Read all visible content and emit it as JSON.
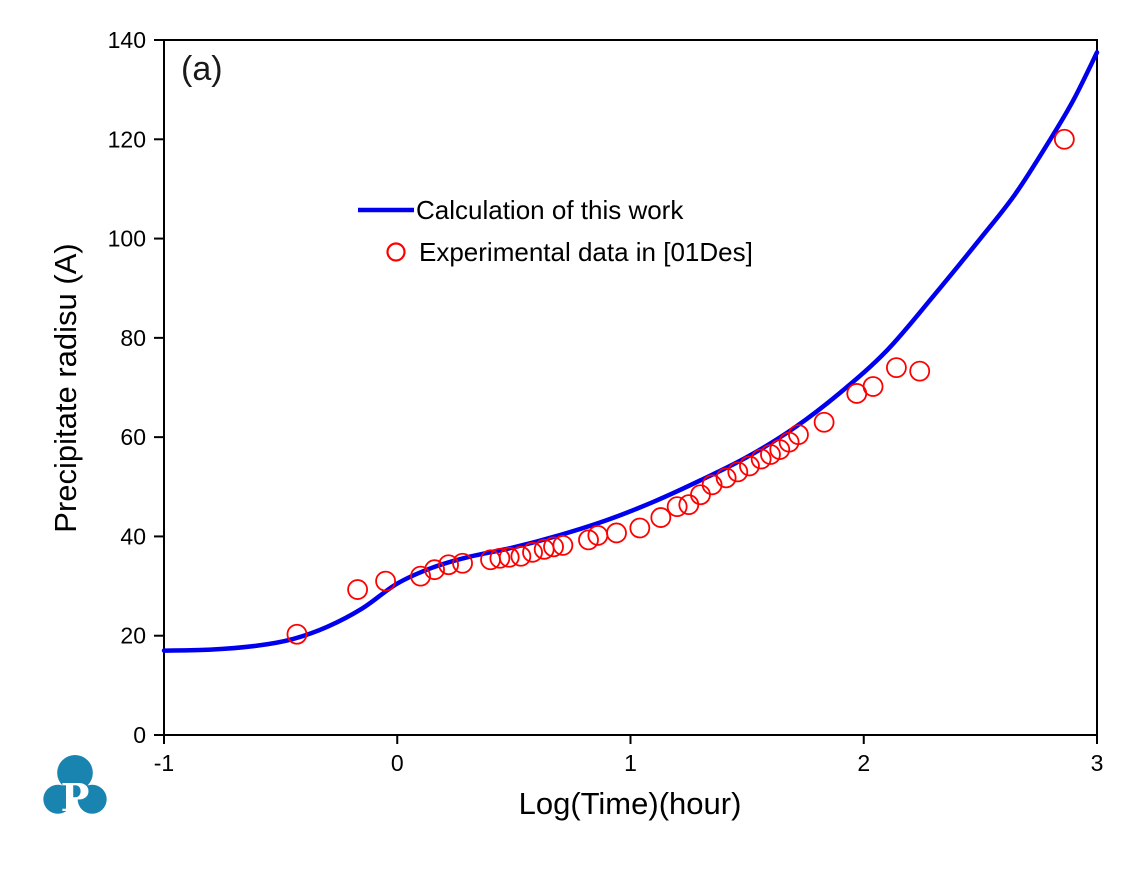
{
  "panel_label": "(a)",
  "logo": {
    "letter": "P",
    "color": "#1a84b0"
  },
  "chart_data": {
    "type": "line",
    "title": "",
    "xlabel": "Log(Time)(hour)",
    "ylabel": "Precipitate radisu (A)",
    "xlim": [
      -1,
      3
    ],
    "ylim": [
      0,
      140
    ],
    "xticks": [
      -1,
      0,
      1,
      2,
      3
    ],
    "yticks": [
      0,
      20,
      40,
      60,
      80,
      100,
      120,
      140
    ],
    "grid": false,
    "legend_position": "inside-upper-left",
    "frame_color": "#000000",
    "series": [
      {
        "name": "Calculation of this work",
        "type": "line",
        "color": "#0000ee",
        "line_width": 4.5,
        "points": [
          [
            -1.0,
            17.0
          ],
          [
            -0.8,
            17.2
          ],
          [
            -0.6,
            18.0
          ],
          [
            -0.45,
            19.3
          ],
          [
            -0.3,
            21.8
          ],
          [
            -0.15,
            25.5
          ],
          [
            0.0,
            30.5
          ],
          [
            0.15,
            33.7
          ],
          [
            0.3,
            35.8
          ],
          [
            0.5,
            37.8
          ],
          [
            0.7,
            40.3
          ],
          [
            0.9,
            43.3
          ],
          [
            1.1,
            47.0
          ],
          [
            1.3,
            51.3
          ],
          [
            1.5,
            56.0
          ],
          [
            1.7,
            61.8
          ],
          [
            1.9,
            69.0
          ],
          [
            2.1,
            77.5
          ],
          [
            2.3,
            88.5
          ],
          [
            2.5,
            100.0
          ],
          [
            2.65,
            109.0
          ],
          [
            2.8,
            120.0
          ],
          [
            2.9,
            128.0
          ],
          [
            3.0,
            137.5
          ]
        ]
      },
      {
        "name": "Experimental data in [01Des]",
        "type": "scatter",
        "marker": "open-circle",
        "color": "#ff0000",
        "marker_radius": 9.5,
        "points": [
          [
            -0.43,
            20.3
          ],
          [
            -0.17,
            29.3
          ],
          [
            -0.05,
            31.0
          ],
          [
            0.1,
            32.0
          ],
          [
            0.16,
            33.3
          ],
          [
            0.22,
            34.3
          ],
          [
            0.28,
            34.6
          ],
          [
            0.4,
            35.3
          ],
          [
            0.44,
            35.6
          ],
          [
            0.48,
            35.8
          ],
          [
            0.53,
            36.0
          ],
          [
            0.58,
            36.8
          ],
          [
            0.63,
            37.4
          ],
          [
            0.67,
            37.9
          ],
          [
            0.71,
            38.2
          ],
          [
            0.82,
            39.3
          ],
          [
            0.86,
            40.2
          ],
          [
            0.94,
            40.7
          ],
          [
            1.04,
            41.7
          ],
          [
            1.13,
            43.8
          ],
          [
            1.2,
            46.0
          ],
          [
            1.25,
            46.4
          ],
          [
            1.3,
            48.4
          ],
          [
            1.35,
            50.4
          ],
          [
            1.41,
            51.8
          ],
          [
            1.46,
            53.0
          ],
          [
            1.51,
            54.2
          ],
          [
            1.56,
            55.6
          ],
          [
            1.6,
            56.5
          ],
          [
            1.64,
            57.5
          ],
          [
            1.68,
            59.0
          ],
          [
            1.72,
            60.5
          ],
          [
            1.83,
            63.0
          ],
          [
            1.97,
            68.8
          ],
          [
            2.04,
            70.2
          ],
          [
            2.14,
            74.0
          ],
          [
            2.24,
            73.3
          ],
          [
            2.86,
            120.0
          ]
        ]
      }
    ]
  }
}
